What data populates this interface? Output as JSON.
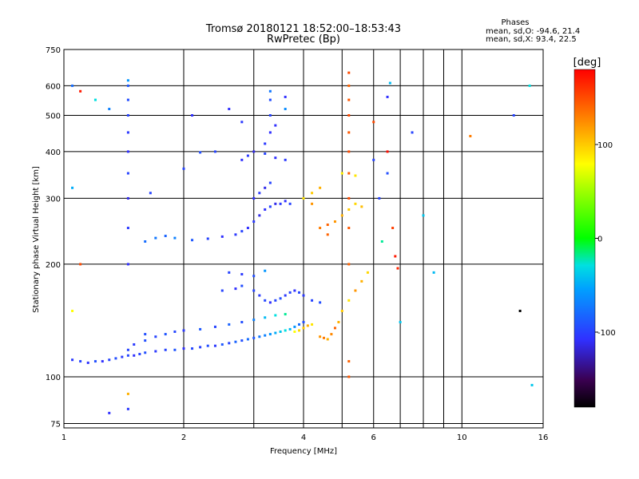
{
  "chart_data": {
    "type": "scatter",
    "title": "Tromsø 20180121 18:52:00–18:53:43",
    "subtitle": "RwPretec (Bp)",
    "stats": {
      "heading": "Phases",
      "line_o": "mean, sd,O: -94.6, 21.4",
      "line_x": "mean, sd,X:  93.4, 22.5"
    },
    "xlabel": "Frequency [MHz]",
    "ylabel": "Stationary phase Virtual Height [km]",
    "x_scale": "log",
    "y_scale": "log",
    "xlim": [
      1,
      16
    ],
    "ylim": [
      73,
      750
    ],
    "x_ticks": [
      1,
      2,
      4,
      6,
      10,
      16
    ],
    "x_minor_ticks": [
      3,
      5,
      7,
      8,
      9
    ],
    "y_ticks": [
      75,
      100,
      200,
      300,
      400,
      500,
      600,
      750
    ],
    "grid": true,
    "colorbar": {
      "label": "[deg]",
      "range": [
        -180,
        180
      ],
      "ticks": [
        100,
        0,
        -100
      ]
    },
    "series": [
      {
        "cluster": "lower-trace",
        "points": [
          [
            1.05,
            111,
            -105
          ],
          [
            1.1,
            110,
            -100
          ],
          [
            1.15,
            109,
            -108
          ],
          [
            1.2,
            110,
            -95
          ],
          [
            1.25,
            110,
            -110
          ],
          [
            1.3,
            111,
            -100
          ],
          [
            1.35,
            112,
            -96
          ],
          [
            1.4,
            113,
            -104
          ],
          [
            1.45,
            114,
            -98
          ],
          [
            1.5,
            114,
            -110
          ],
          [
            1.55,
            115,
            -100
          ],
          [
            1.6,
            116,
            -95
          ],
          [
            1.7,
            117,
            -105
          ],
          [
            1.8,
            118,
            -100
          ],
          [
            1.9,
            118,
            -92
          ],
          [
            2.0,
            119,
            -110
          ],
          [
            2.1,
            119,
            -98
          ],
          [
            2.2,
            120,
            -102
          ],
          [
            2.3,
            121,
            -95
          ],
          [
            2.4,
            121,
            -105
          ],
          [
            2.5,
            122,
            -90
          ],
          [
            2.6,
            123,
            -100
          ],
          [
            2.7,
            124,
            -85
          ],
          [
            2.8,
            125,
            -95
          ],
          [
            2.9,
            126,
            -80
          ],
          [
            3.0,
            127,
            -90
          ],
          [
            3.1,
            128,
            -75
          ],
          [
            3.2,
            129,
            -70
          ],
          [
            3.3,
            130,
            -60
          ],
          [
            3.4,
            131,
            -50
          ],
          [
            3.5,
            132,
            -40
          ],
          [
            3.6,
            133,
            -30
          ],
          [
            3.7,
            134,
            -45
          ],
          [
            3.8,
            136,
            -60
          ],
          [
            3.9,
            138,
            -80
          ],
          [
            4.0,
            140,
            -95
          ]
        ]
      },
      {
        "cluster": "e-layer-arc",
        "points": [
          [
            1.45,
            118,
            -100
          ],
          [
            1.5,
            122,
            -105
          ],
          [
            1.6,
            125,
            -95
          ],
          [
            1.7,
            128,
            -100
          ],
          [
            1.8,
            130,
            -92
          ],
          [
            1.9,
            132,
            -98
          ],
          [
            2.0,
            133,
            -105
          ],
          [
            2.2,
            134,
            -90
          ],
          [
            2.4,
            136,
            -100
          ],
          [
            2.6,
            138,
            -85
          ],
          [
            2.8,
            140,
            -95
          ],
          [
            3.0,
            142,
            -70
          ],
          [
            3.2,
            144,
            -45
          ],
          [
            3.4,
            146,
            -30
          ],
          [
            3.6,
            147,
            -20
          ]
        ]
      },
      {
        "cluster": "mid-branch",
        "points": [
          [
            2.5,
            170,
            -100
          ],
          [
            2.7,
            172,
            -110
          ],
          [
            2.8,
            175,
            -95
          ],
          [
            3.0,
            170,
            -100
          ],
          [
            3.1,
            165,
            -105
          ],
          [
            3.2,
            160,
            -98
          ],
          [
            3.3,
            158,
            -110
          ],
          [
            3.4,
            160,
            -100
          ],
          [
            3.5,
            162,
            -95
          ],
          [
            3.6,
            165,
            -105
          ],
          [
            3.7,
            168,
            -100
          ],
          [
            3.8,
            170,
            -110
          ],
          [
            3.9,
            168,
            -98
          ],
          [
            4.0,
            165,
            -105
          ],
          [
            4.2,
            160,
            -100
          ],
          [
            4.4,
            158,
            -95
          ],
          [
            2.6,
            190,
            -100
          ],
          [
            2.8,
            188,
            -105
          ],
          [
            3.0,
            186,
            -95
          ],
          [
            3.2,
            192,
            -60
          ]
        ]
      },
      {
        "cluster": "upper-trace",
        "points": [
          [
            1.6,
            230,
            -80
          ],
          [
            1.7,
            235,
            -75
          ],
          [
            1.8,
            238,
            -85
          ],
          [
            1.9,
            235,
            -70
          ],
          [
            2.1,
            232,
            -90
          ],
          [
            2.3,
            234,
            -100
          ],
          [
            2.5,
            237,
            -110
          ],
          [
            2.7,
            240,
            -105
          ],
          [
            2.8,
            245,
            -100
          ],
          [
            2.9,
            250,
            -110
          ],
          [
            3.0,
            260,
            -105
          ],
          [
            3.1,
            270,
            -115
          ],
          [
            3.2,
            280,
            -110
          ],
          [
            3.3,
            285,
            -100
          ],
          [
            3.4,
            290,
            -115
          ],
          [
            3.5,
            290,
            -105
          ],
          [
            3.6,
            295,
            -110
          ],
          [
            3.7,
            290,
            -100
          ],
          [
            3.0,
            300,
            -110
          ],
          [
            3.1,
            310,
            -105
          ],
          [
            3.2,
            320,
            -115
          ],
          [
            3.3,
            330,
            -100
          ],
          [
            2.8,
            380,
            -110
          ],
          [
            2.9,
            390,
            -105
          ],
          [
            3.0,
            400,
            -115
          ],
          [
            3.2,
            395,
            -100
          ],
          [
            3.4,
            385,
            -110
          ],
          [
            3.6,
            380,
            -105
          ],
          [
            2.4,
            400,
            -100
          ],
          [
            2.2,
            398,
            -95
          ]
        ]
      },
      {
        "cluster": "x-mode",
        "points": [
          [
            3.8,
            132,
            80
          ],
          [
            3.9,
            133,
            95
          ],
          [
            4.0,
            135,
            100
          ],
          [
            4.1,
            137,
            110
          ],
          [
            4.2,
            138,
            90
          ],
          [
            4.4,
            128,
            120
          ],
          [
            4.5,
            127,
            130
          ],
          [
            4.6,
            126,
            110
          ],
          [
            4.7,
            130,
            125
          ],
          [
            4.8,
            135,
            140
          ],
          [
            4.9,
            140,
            110
          ],
          [
            5.0,
            150,
            100
          ],
          [
            5.2,
            160,
            90
          ],
          [
            5.4,
            170,
            120
          ],
          [
            5.6,
            180,
            110
          ],
          [
            5.8,
            190,
            95
          ],
          [
            4.4,
            250,
            130
          ],
          [
            4.6,
            255,
            140
          ],
          [
            4.8,
            260,
            120
          ],
          [
            5.0,
            270,
            110
          ],
          [
            5.2,
            280,
            100
          ],
          [
            5.4,
            290,
            95
          ],
          [
            5.6,
            285,
            105
          ],
          [
            4.0,
            300,
            90
          ],
          [
            4.2,
            310,
            100
          ],
          [
            4.4,
            320,
            110
          ],
          [
            4.2,
            290,
            120
          ],
          [
            4.6,
            240,
            140
          ],
          [
            5.0,
            350,
            85
          ],
          [
            5.4,
            345,
            90
          ]
        ]
      },
      {
        "cluster": "vertical-streaks",
        "points": [
          [
            1.45,
            200,
            -110
          ],
          [
            1.45,
            250,
            -105
          ],
          [
            1.45,
            300,
            -115
          ],
          [
            1.45,
            350,
            -100
          ],
          [
            1.45,
            400,
            -110
          ],
          [
            1.45,
            450,
            -105
          ],
          [
            1.45,
            500,
            -100
          ],
          [
            1.45,
            550,
            -95
          ],
          [
            1.45,
            600,
            -90
          ],
          [
            1.45,
            620,
            -60
          ],
          [
            5.2,
            200,
            140
          ],
          [
            5.2,
            250,
            145
          ],
          [
            5.2,
            300,
            150
          ],
          [
            5.2,
            350,
            145
          ],
          [
            5.2,
            400,
            150
          ],
          [
            5.2,
            450,
            145
          ],
          [
            5.2,
            500,
            150
          ],
          [
            5.2,
            550,
            145
          ],
          [
            5.2,
            600,
            140
          ],
          [
            5.2,
            650,
            150
          ],
          [
            5.2,
            100,
            145
          ],
          [
            5.2,
            110,
            140
          ],
          [
            3.3,
            450,
            -110
          ],
          [
            3.3,
            500,
            -100
          ],
          [
            3.3,
            550,
            -95
          ],
          [
            3.3,
            580,
            -75
          ],
          [
            3.6,
            520,
            -65
          ],
          [
            3.6,
            560,
            -110
          ],
          [
            3.2,
            420,
            -105
          ],
          [
            3.4,
            470,
            -110
          ]
        ]
      },
      {
        "cluster": "scattered",
        "points": [
          [
            1.05,
            600,
            -80
          ],
          [
            1.1,
            580,
            170
          ],
          [
            1.2,
            550,
            -30
          ],
          [
            1.3,
            520,
            -70
          ],
          [
            1.05,
            320,
            -50
          ],
          [
            1.1,
            200,
            150
          ],
          [
            1.05,
            150,
            80
          ],
          [
            1.3,
            80,
            -110
          ],
          [
            1.45,
            82,
            -105
          ],
          [
            1.45,
            90,
            110
          ],
          [
            1.6,
            130,
            -95
          ],
          [
            1.65,
            310,
            -100
          ],
          [
            2.0,
            360,
            -100
          ],
          [
            2.1,
            500,
            -110
          ],
          [
            2.6,
            520,
            -110
          ],
          [
            2.8,
            480,
            -105
          ],
          [
            6.0,
            480,
            150
          ],
          [
            6.0,
            380,
            -100
          ],
          [
            6.5,
            350,
            -95
          ],
          [
            6.5,
            560,
            -110
          ],
          [
            6.5,
            400,
            175
          ],
          [
            6.6,
            610,
            -45
          ],
          [
            6.8,
            210,
            170
          ],
          [
            6.9,
            195,
            165
          ],
          [
            7.0,
            140,
            -40
          ],
          [
            7.5,
            450,
            -100
          ],
          [
            8.0,
            270,
            -40
          ],
          [
            8.5,
            190,
            -45
          ],
          [
            10.5,
            440,
            130
          ],
          [
            13.5,
            500,
            -100
          ],
          [
            14.0,
            150,
            -180
          ],
          [
            14.8,
            600,
            -30
          ],
          [
            15.0,
            95,
            -40
          ],
          [
            6.2,
            300,
            -100
          ],
          [
            6.3,
            230,
            -20
          ],
          [
            6.7,
            250,
            155
          ]
        ]
      }
    ]
  }
}
